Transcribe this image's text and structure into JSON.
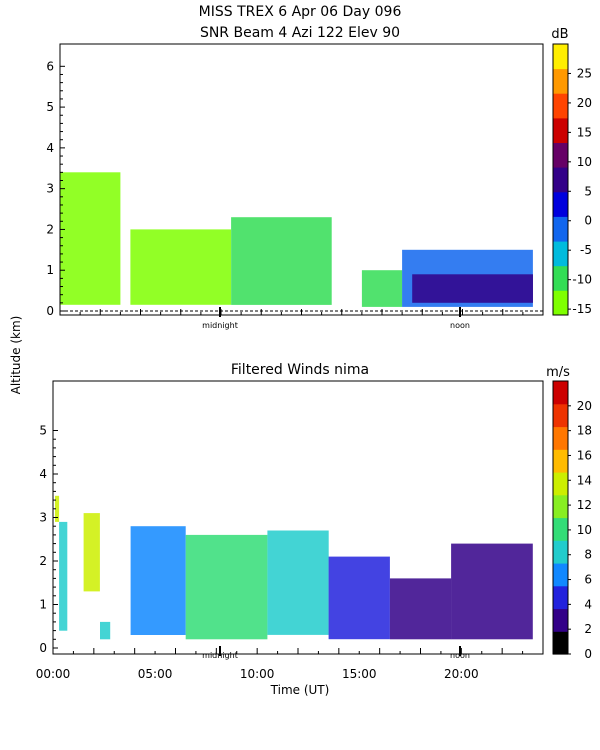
{
  "figure": {
    "title_line1": "MISS TREX     6 Apr 06 Day 096",
    "ylabel": "Altitude (km)",
    "xlabel": "Time (UT)"
  },
  "chart_data": [
    {
      "type": "heatmap",
      "title": "SNR Beam 4 Azi 122 Elev 90",
      "ylim": [
        0,
        6.4
      ],
      "yticks": [
        "0",
        "1",
        "2",
        "3",
        "4",
        "5",
        "6"
      ],
      "x_markers": [
        "midnight",
        "noon"
      ],
      "colorbar": {
        "unit": "dB",
        "range": [
          -16,
          30
        ],
        "tick_labels": [
          "25",
          "20",
          "15",
          "10",
          "5",
          "0",
          "-5",
          "-10",
          "-15"
        ],
        "colors": [
          "#7fff00",
          "#33dd55",
          "#00bbdd",
          "#1166ee",
          "#0000dd",
          "#330088",
          "#660066",
          "#cc0000",
          "#ff4400",
          "#ff9900",
          "#ffee00"
        ]
      },
      "regions": [
        {
          "t": [
            0.0,
            3.0
          ],
          "alt": [
            0.15,
            3.4
          ],
          "value": -12
        },
        {
          "t": [
            3.5,
            8.5
          ],
          "alt": [
            0.15,
            2.0
          ],
          "value": -12
        },
        {
          "t": [
            8.5,
            13.5
          ],
          "alt": [
            0.15,
            2.3
          ],
          "value": -11
        },
        {
          "t": [
            15.0,
            17.0
          ],
          "alt": [
            0.1,
            1.0
          ],
          "value": -8
        },
        {
          "t": [
            17.0,
            23.5
          ],
          "alt": [
            0.1,
            1.5
          ],
          "value": 0
        },
        {
          "t": [
            17.5,
            23.5
          ],
          "alt": [
            0.2,
            0.9
          ],
          "value": 5
        }
      ]
    },
    {
      "type": "heatmap",
      "title": "Filtered Winds nima",
      "xlim": [
        0,
        24
      ],
      "ylim": [
        0,
        6
      ],
      "yticks": [
        "0",
        "1",
        "2",
        "3",
        "4",
        "5"
      ],
      "xtick_labels": [
        "00:00",
        "05:00",
        "10:00",
        "15:00",
        "20:00"
      ],
      "x_markers": [
        "midnight",
        "noon"
      ],
      "colorbar": {
        "unit": "m/s",
        "range": [
          0,
          22
        ],
        "tick_labels": [
          "20",
          "18",
          "16",
          "14",
          "12",
          "10",
          "8",
          "6",
          "4",
          "2",
          "0"
        ],
        "colors": [
          "#000000",
          "#330088",
          "#2222dd",
          "#1188ff",
          "#22cccc",
          "#33dd77",
          "#88ee22",
          "#ccee00",
          "#ffbb00",
          "#ff7700",
          "#ee3300",
          "#cc0000"
        ]
      },
      "regions": [
        {
          "t": [
            0.1,
            0.3
          ],
          "alt": [
            2.9,
            3.5
          ],
          "value": 14
        },
        {
          "t": [
            0.3,
            0.7
          ],
          "alt": [
            0.4,
            2.9
          ],
          "value": 9
        },
        {
          "t": [
            1.5,
            2.3
          ],
          "alt": [
            1.3,
            3.1
          ],
          "value": 13
        },
        {
          "t": [
            2.3,
            2.8
          ],
          "alt": [
            0.2,
            0.6
          ],
          "value": 8
        },
        {
          "t": [
            3.8,
            6.5
          ],
          "alt": [
            0.3,
            2.8
          ],
          "value": 7
        },
        {
          "t": [
            6.5,
            10.5
          ],
          "alt": [
            0.2,
            2.6
          ],
          "value": 10
        },
        {
          "t": [
            10.5,
            13.5
          ],
          "alt": [
            0.3,
            2.7
          ],
          "value": 8
        },
        {
          "t": [
            13.5,
            16.5
          ],
          "alt": [
            0.2,
            2.1
          ],
          "value": 5
        },
        {
          "t": [
            16.5,
            19.5
          ],
          "alt": [
            0.2,
            1.6
          ],
          "value": 3
        },
        {
          "t": [
            19.5,
            23.5
          ],
          "alt": [
            0.2,
            2.4
          ],
          "value": 3
        }
      ]
    }
  ]
}
